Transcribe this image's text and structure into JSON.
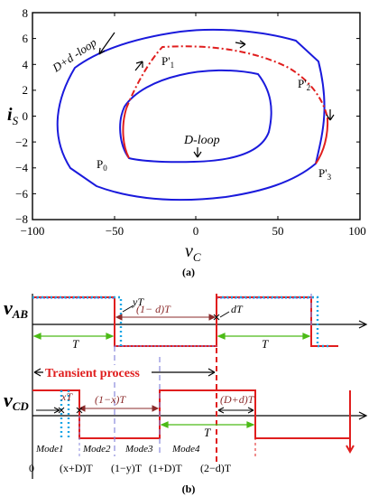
{
  "panel_a": {
    "caption": "(a)",
    "y_axis_label": "i",
    "y_axis_sub": "S",
    "x_axis_label": "v",
    "x_axis_sub": "C",
    "x_ticks": [
      "−100",
      "−50",
      "0",
      "50",
      "100"
    ],
    "y_ticks": [
      "8",
      "6",
      "4",
      "2",
      "0",
      "−2",
      "−4",
      "−6",
      "−8"
    ],
    "label_outer_loop": "D+d -loop",
    "label_inner_loop": "D-loop",
    "point_labels": {
      "p0": "P",
      "p0_sub": "0",
      "p1": "P'",
      "p1_sub": "1",
      "p2": "P'",
      "p2_sub": "2",
      "p3": "P'",
      "p3_sub": "3"
    },
    "colors": {
      "loop": "#1a1adc",
      "transient": "#e01e1e"
    }
  },
  "panel_b": {
    "caption": "(b)",
    "vab_label": "v",
    "vab_sub": "AB",
    "vcd_label": "v",
    "vcd_sub": "CD",
    "yT": "yT",
    "one_minus_d_T": "(1− d)T",
    "dT": "dT",
    "T_left": "T",
    "T_right": "T",
    "transient_process": "Transient process",
    "xT": "xT",
    "one_minus_x_T": "(1−x)T",
    "D_plus_d_T": "(D+d)T",
    "T_mode4": "T",
    "modes": [
      "Mode1",
      "Mode2",
      "Mode3",
      "Mode4"
    ],
    "time_labels": [
      "0",
      "(x+D)T",
      "(1−y)T",
      "(1+D)T",
      "(2−d)T"
    ],
    "colors": {
      "red": "#e01e1e",
      "cyan": "#1aa6e6",
      "green": "#4cbb17",
      "purple": "#7a7adc",
      "brown": "#8b2b2b"
    }
  }
}
